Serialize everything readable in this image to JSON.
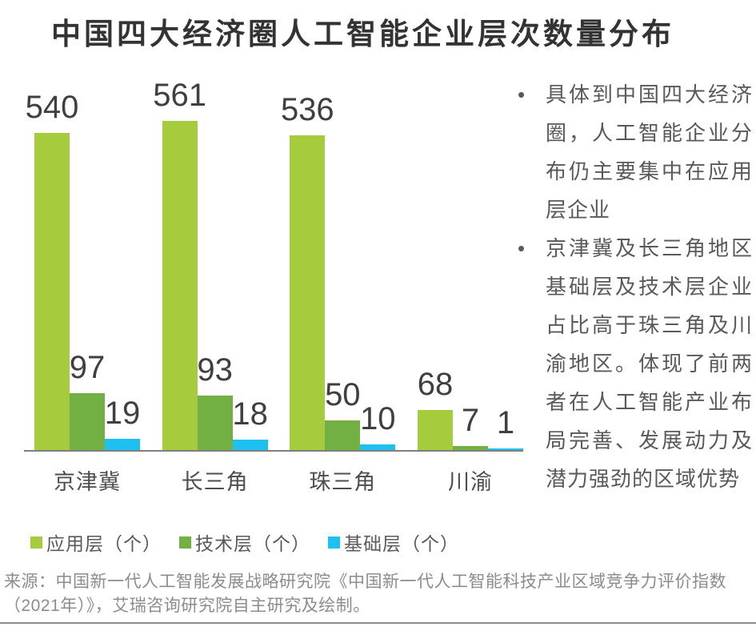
{
  "title": "中国四大经济圈人工智能企业层次数量分布",
  "chart_data": {
    "type": "bar",
    "title": "中国四大经济圈人工智能企业层次数量分布",
    "categories": [
      "京津冀",
      "长三角",
      "珠三角",
      "川渝"
    ],
    "series": [
      {
        "name": "应用层（个）",
        "color": "#a6cb3c",
        "values": [
          540,
          561,
          536,
          68
        ]
      },
      {
        "name": "技术层（个）",
        "color": "#72b043",
        "values": [
          97,
          93,
          50,
          7
        ]
      },
      {
        "name": "基础层（个）",
        "color": "#1ec0f0",
        "values": [
          19,
          18,
          10,
          1
        ]
      }
    ],
    "xlabel": "",
    "ylabel": "",
    "grid": false,
    "y_axis_visible": false,
    "value_labels": true,
    "legend_position": "bottom"
  },
  "insights": {
    "bullet_char": "•",
    "items": [
      "具体到中国四大经济圈，人工智能企业分布仍主要集中在应用层企业",
      "京津冀及长三角地区基础层及技术层企业占比高于珠三角及川渝地区。体现了前两者在人工智能产业布局完善、发展动力及潜力强劲的区域优势"
    ]
  },
  "source": "来源：中国新一代人工智能发展战略研究院《中国新一代人工智能科技产业区域竞争力评价指数（2021年）》，艾瑞咨询研究院自主研究及绘制。",
  "colors": {
    "axis": "#7f7f7f",
    "value_label": "#3f3f3f",
    "category_label": "#4d4d4d",
    "text_gray": "#595959",
    "source_gray": "#8c8c8c"
  }
}
